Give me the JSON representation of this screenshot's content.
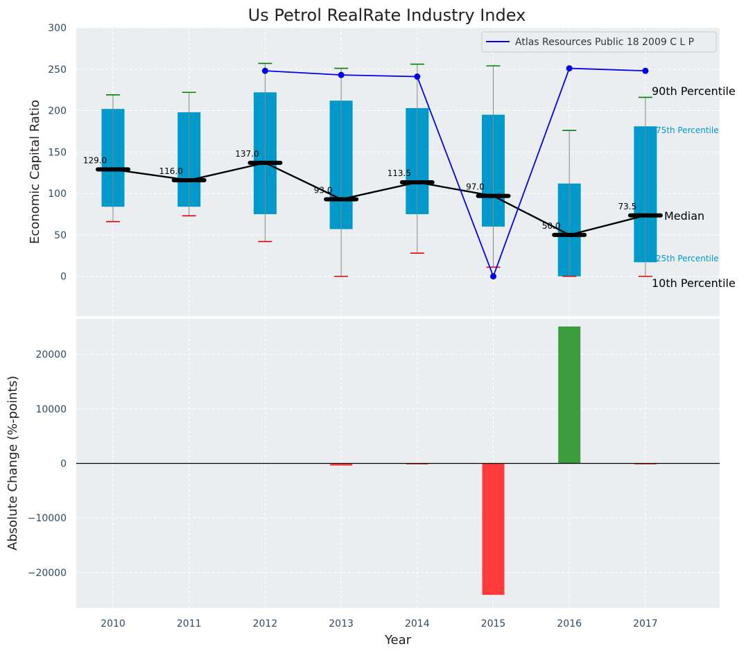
{
  "chart_data": {
    "type": "box-line-bar",
    "title": "Us Petrol RealRate Industry Index",
    "xlabel": "Year",
    "categories": [
      "2010",
      "2011",
      "2012",
      "2013",
      "2014",
      "2015",
      "2016",
      "2017"
    ],
    "top": {
      "ylabel": "Economic Capital Ratio",
      "ylim": [
        -48,
        300
      ],
      "yticks": [
        0,
        50,
        100,
        150,
        200,
        250,
        300
      ],
      "ytick_labels": [
        "0",
        "50",
        "100",
        "150",
        "200",
        "250",
        "300"
      ],
      "p10": [
        66,
        73,
        42,
        0,
        28,
        11,
        0,
        0
      ],
      "p25": [
        84,
        84,
        75,
        57,
        75,
        60,
        0,
        17
      ],
      "median": [
        129.0,
        116.0,
        137.0,
        93.0,
        113.5,
        97.0,
        50.0,
        73.5
      ],
      "median_labels": [
        "129.0",
        "116.0",
        "137.0",
        "93.0",
        "113.5",
        "97.0",
        "50.0",
        "73.5"
      ],
      "p75": [
        202,
        198,
        222,
        212,
        203,
        195,
        112,
        181
      ],
      "p90": [
        219,
        222,
        257,
        251,
        256,
        254,
        176,
        216
      ],
      "company": {
        "name": "Atlas Resources Public 18 2009 C L P",
        "values": [
          null,
          null,
          248,
          243,
          241,
          0,
          251,
          248
        ]
      },
      "annotations": {
        "p90": "90th Percentile",
        "p75": "75th Percentile",
        "median": "Median",
        "p25": "25th Percentile",
        "p10": "10th Percentile"
      }
    },
    "bottom": {
      "ylabel": "Absolute Change (%-points)",
      "ylim": [
        -26500,
        26500
      ],
      "yticks": [
        -20000,
        -10000,
        0,
        10000,
        20000
      ],
      "ytick_labels": [
        "−20000",
        "−10000",
        "0",
        "10000",
        "20000"
      ],
      "values": [
        0,
        0,
        0,
        -400,
        -100,
        -24100,
        25100,
        -100
      ]
    },
    "colors": {
      "box": "#0099cc",
      "whisker": "#888888",
      "p90_cap": "#008000",
      "p10_cap": "#e00000",
      "company": "#0000ee",
      "median": "#000000",
      "pos_bar": "#3a9c3a",
      "neg_bar": "#ff3b3b",
      "plot_bg": "#eaeef0",
      "grid": "#ffffff",
      "tick_text": "#2e4a62",
      "annot_small": "#0099cc"
    }
  }
}
